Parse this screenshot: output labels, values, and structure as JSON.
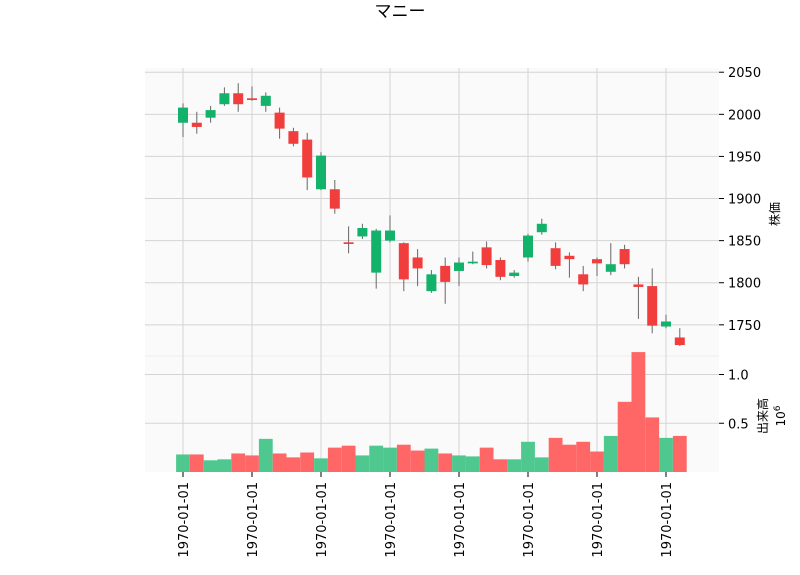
{
  "chart_data": {
    "type": "candlestick",
    "title": "マニー",
    "price_axis": {
      "label": "株価",
      "ticks": [
        "1750",
        "1800",
        "1850",
        "1900",
        "1950",
        "2000",
        "2050"
      ],
      "ylim": [
        1713,
        2055
      ]
    },
    "volume_axis": {
      "label": "出来高",
      "exponent_label": "10",
      "exponent_power": "6",
      "ticks": [
        "0.5",
        "1.0"
      ],
      "ylim": [
        0,
        1.19
      ]
    },
    "x_tick_labels": [
      "1970-01-01",
      "1970-01-01",
      "1970-01-01",
      "1970-01-01",
      "1970-01-01",
      "1970-01-01",
      "1970-01-01",
      "1970-01-01"
    ],
    "x_tick_positions": [
      1,
      6,
      11,
      16,
      21,
      26,
      31,
      36
    ],
    "up_color": "#12b26a",
    "down_color": "#f23d3d",
    "up_volume_color": "#4ec88e",
    "down_volume_color": "#ff6666",
    "grid": true,
    "candles": [
      {
        "open": 1990,
        "high": 2013,
        "low": 1973,
        "close": 2008
      },
      {
        "open": 1990,
        "high": 2003,
        "low": 1977,
        "close": 1985
      },
      {
        "open": 1996,
        "high": 2010,
        "low": 1990,
        "close": 2005
      },
      {
        "open": 2012,
        "high": 2032,
        "low": 2010,
        "close": 2025
      },
      {
        "open": 2025,
        "high": 2037,
        "low": 2003,
        "close": 2012
      },
      {
        "open": 2019,
        "high": 2033,
        "low": 2016,
        "close": 2017
      },
      {
        "open": 2010,
        "high": 2026,
        "low": 2003,
        "close": 2022
      },
      {
        "open": 2002,
        "high": 2008,
        "low": 1971,
        "close": 1983
      },
      {
        "open": 1980,
        "high": 1984,
        "low": 1962,
        "close": 1965
      },
      {
        "open": 1970,
        "high": 1978,
        "low": 1910,
        "close": 1925
      },
      {
        "open": 1911,
        "high": 1955,
        "low": 1910,
        "close": 1951
      },
      {
        "open": 1911,
        "high": 1922,
        "low": 1882,
        "close": 1888
      },
      {
        "open": 1848,
        "high": 1867,
        "low": 1835,
        "close": 1846
      },
      {
        "open": 1855,
        "high": 1870,
        "low": 1852,
        "close": 1865
      },
      {
        "open": 1812,
        "high": 1864,
        "low": 1793,
        "close": 1862
      },
      {
        "open": 1850,
        "high": 1880,
        "low": 1848,
        "close": 1862
      },
      {
        "open": 1847,
        "high": 1848,
        "low": 1790,
        "close": 1804
      },
      {
        "open": 1830,
        "high": 1840,
        "low": 1796,
        "close": 1817
      },
      {
        "open": 1790,
        "high": 1815,
        "low": 1788,
        "close": 1810
      },
      {
        "open": 1820,
        "high": 1830,
        "low": 1775,
        "close": 1801
      },
      {
        "open": 1814,
        "high": 1830,
        "low": 1796,
        "close": 1824
      },
      {
        "open": 1823,
        "high": 1837,
        "low": 1822,
        "close": 1825
      },
      {
        "open": 1842,
        "high": 1849,
        "low": 1817,
        "close": 1821
      },
      {
        "open": 1827,
        "high": 1830,
        "low": 1803,
        "close": 1807
      },
      {
        "open": 1808,
        "high": 1815,
        "low": 1806,
        "close": 1812
      },
      {
        "open": 1830,
        "high": 1858,
        "low": 1825,
        "close": 1856
      },
      {
        "open": 1860,
        "high": 1876,
        "low": 1857,
        "close": 1870
      },
      {
        "open": 1841,
        "high": 1848,
        "low": 1816,
        "close": 1820
      },
      {
        "open": 1832,
        "high": 1836,
        "low": 1806,
        "close": 1828
      },
      {
        "open": 1810,
        "high": 1820,
        "low": 1790,
        "close": 1798
      },
      {
        "open": 1828,
        "high": 1830,
        "low": 1808,
        "close": 1823
      },
      {
        "open": 1813,
        "high": 1847,
        "low": 1809,
        "close": 1822
      },
      {
        "open": 1840,
        "high": 1845,
        "low": 1817,
        "close": 1822
      },
      {
        "open": 1798,
        "high": 1807,
        "low": 1757,
        "close": 1795
      },
      {
        "open": 1796,
        "high": 1817,
        "low": 1740,
        "close": 1749
      },
      {
        "open": 1748,
        "high": 1762,
        "low": 1746,
        "close": 1754
      },
      {
        "open": 1735,
        "high": 1746,
        "low": 1725,
        "close": 1726
      }
    ],
    "volumes": [
      0.18,
      0.18,
      0.12,
      0.13,
      0.19,
      0.17,
      0.34,
      0.19,
      0.15,
      0.2,
      0.14,
      0.25,
      0.27,
      0.17,
      0.27,
      0.25,
      0.28,
      0.22,
      0.24,
      0.19,
      0.17,
      0.16,
      0.25,
      0.13,
      0.13,
      0.31,
      0.15,
      0.35,
      0.28,
      0.31,
      0.21,
      0.37,
      0.72,
      1.23,
      0.56,
      0.35,
      0.37
    ]
  }
}
